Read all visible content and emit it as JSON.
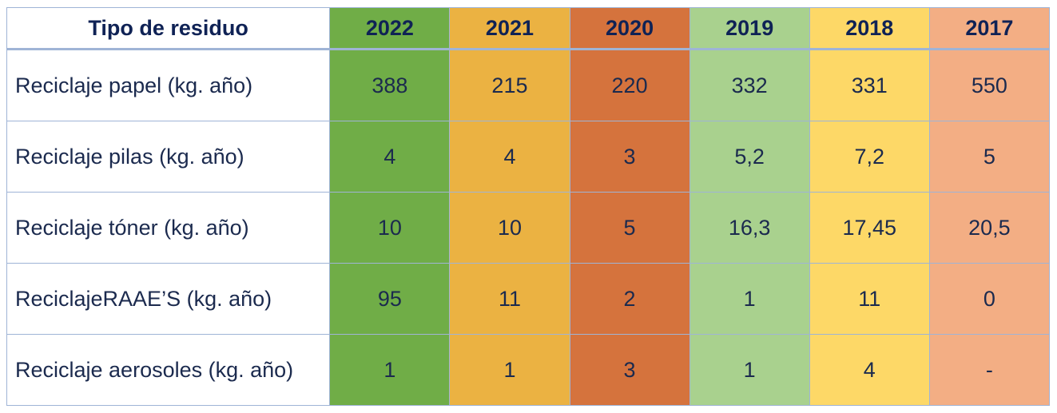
{
  "table": {
    "header": {
      "type_label": "Tipo de residuo",
      "years": [
        "2022",
        "2021",
        "2020",
        "2019",
        "2018",
        "2017"
      ]
    },
    "year_colors": [
      "#70ad47",
      "#ebb242",
      "#d5733d",
      "#a9d18e",
      "#fdd867",
      "#f3ae84"
    ],
    "rows": [
      {
        "label": "Reciclaje papel (kg. año)",
        "values": [
          "388",
          "215",
          "220",
          "332",
          "331",
          "550"
        ]
      },
      {
        "label": "Reciclaje pilas (kg. año)",
        "values": [
          "4",
          "4",
          "3",
          "5,2",
          "7,2",
          "5"
        ]
      },
      {
        "label": "Reciclaje tóner (kg. año)",
        "values": [
          "10",
          "10",
          "5",
          "16,3",
          "17,45",
          "20,5"
        ]
      },
      {
        "label": "ReciclajeRAAE’S (kg. año)",
        "values": [
          "95",
          "11",
          "2",
          "1",
          "11",
          "0"
        ]
      },
      {
        "label": "Reciclaje aerosoles (kg. año)",
        "values": [
          "1",
          "1",
          "3",
          "1",
          "4",
          "-"
        ]
      }
    ]
  }
}
